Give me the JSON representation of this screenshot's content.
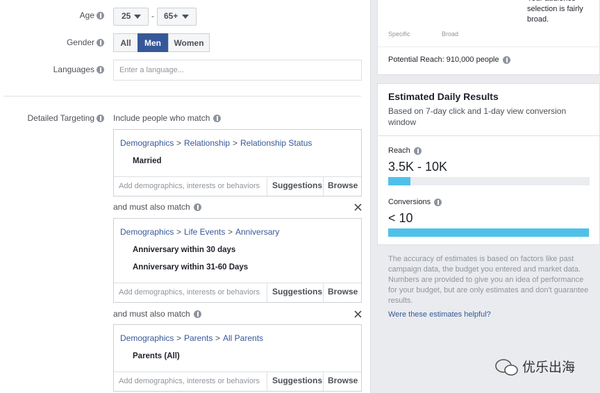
{
  "separator": ">",
  "form": {
    "age": {
      "label": "Age",
      "min": "25",
      "dash": "-",
      "max": "65+"
    },
    "gender": {
      "label": "Gender",
      "options": [
        "All",
        "Men",
        "Women"
      ]
    },
    "languages": {
      "label": "Languages",
      "placeholder": "Enter a language..."
    }
  },
  "detailed_targeting": {
    "label": "Detailed Targeting",
    "groups": [
      {
        "heading": "Include people who match",
        "breadcrumb": [
          "Demographics",
          "Relationship",
          "Relationship Status"
        ],
        "items": [
          "Married"
        ]
      },
      {
        "heading": "and must also match",
        "breadcrumb": [
          "Demographics",
          "Life Events",
          "Anniversary"
        ],
        "items": [
          "Anniversary within 30 days",
          "Anniversary within 31-60 Days"
        ]
      },
      {
        "heading": "and must also match",
        "breadcrumb": [
          "Demographics",
          "Parents",
          "All Parents"
        ],
        "items": [
          "Parents (All)"
        ]
      }
    ],
    "footer": {
      "placeholder": "Add demographics, interests or behaviors",
      "suggestions": "Suggestions",
      "browse": "Browse"
    }
  },
  "audience": {
    "specific": "Specific",
    "broad": "Broad",
    "summary": "Your audience selection is fairly broad.",
    "potential_reach": "Potential Reach: 910,000 people"
  },
  "estimates": {
    "title": "Estimated Daily Results",
    "subtitle": "Based on 7-day click and 1-day view conversion window",
    "reach": {
      "label": "Reach",
      "value": "3.5K - 10K"
    },
    "conversions": {
      "label": "Conversions",
      "value": "< 10"
    },
    "disclaimer": "The accuracy of estimates is based on factors like past campaign data, the budget you entered and market data. Numbers are provided to give you an idea of performance for your budget, but are only estimates and don't guarantee results.",
    "feedback_link": "Were these estimates helpful?"
  },
  "watermark": "优乐出海"
}
